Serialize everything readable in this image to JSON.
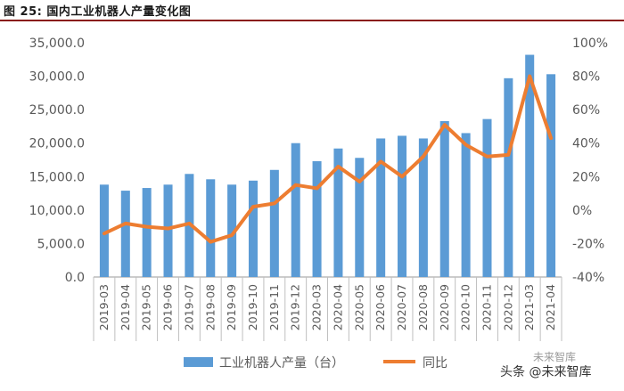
{
  "figure_title": "图 25:  国内工业机器人产量变化图",
  "watermark": "头条 @未来智库",
  "watermark_top": "未来智库",
  "colors": {
    "bar": "#5b9bd5",
    "line": "#ed7d31",
    "title_rule": "#8a1a12",
    "axis": "#999999",
    "text": "#595959"
  },
  "chart_data": {
    "type": "bar",
    "title": "",
    "categories": [
      "2019-03",
      "2019-04",
      "2019-05",
      "2019-06",
      "2019-07",
      "2019-08",
      "2019-09",
      "2019-10",
      "2019-11",
      "2019-12",
      "2020-03",
      "2020-04",
      "2020-05",
      "2020-06",
      "2020-07",
      "2020-08",
      "2020-09",
      "2020-10",
      "2020-11",
      "2020-12",
      "2021-03",
      "2021-04"
    ],
    "series": [
      {
        "name": "工业机器人产量（台）",
        "type": "bar",
        "axis": "left",
        "values": [
          13800,
          12900,
          13300,
          13800,
          15400,
          14600,
          13800,
          14400,
          16000,
          20000,
          17300,
          19200,
          17800,
          20700,
          21100,
          20700,
          23300,
          21500,
          23600,
          29700,
          33200,
          30300
        ]
      },
      {
        "name": "同比",
        "type": "line",
        "axis": "right",
        "values": [
          -0.14,
          -0.08,
          -0.1,
          -0.11,
          -0.08,
          -0.19,
          -0.15,
          0.02,
          0.04,
          0.15,
          0.13,
          0.26,
          0.17,
          0.29,
          0.2,
          0.32,
          0.51,
          0.39,
          0.32,
          0.33,
          0.8,
          0.43
        ]
      }
    ],
    "left_axis": {
      "ylim": [
        0,
        35000
      ],
      "ticks": [
        "0.0",
        "5,000.0",
        "10,000.0",
        "15,000.0",
        "20,000.0",
        "25,000.0",
        "30,000.0",
        "35,000.0"
      ]
    },
    "right_axis": {
      "ylim": [
        -0.4,
        1.0
      ],
      "ticks": [
        "-40%",
        "-20%",
        "0%",
        "20%",
        "40%",
        "60%",
        "80%",
        "100%"
      ]
    },
    "legend_position": "bottom",
    "grid": false
  }
}
